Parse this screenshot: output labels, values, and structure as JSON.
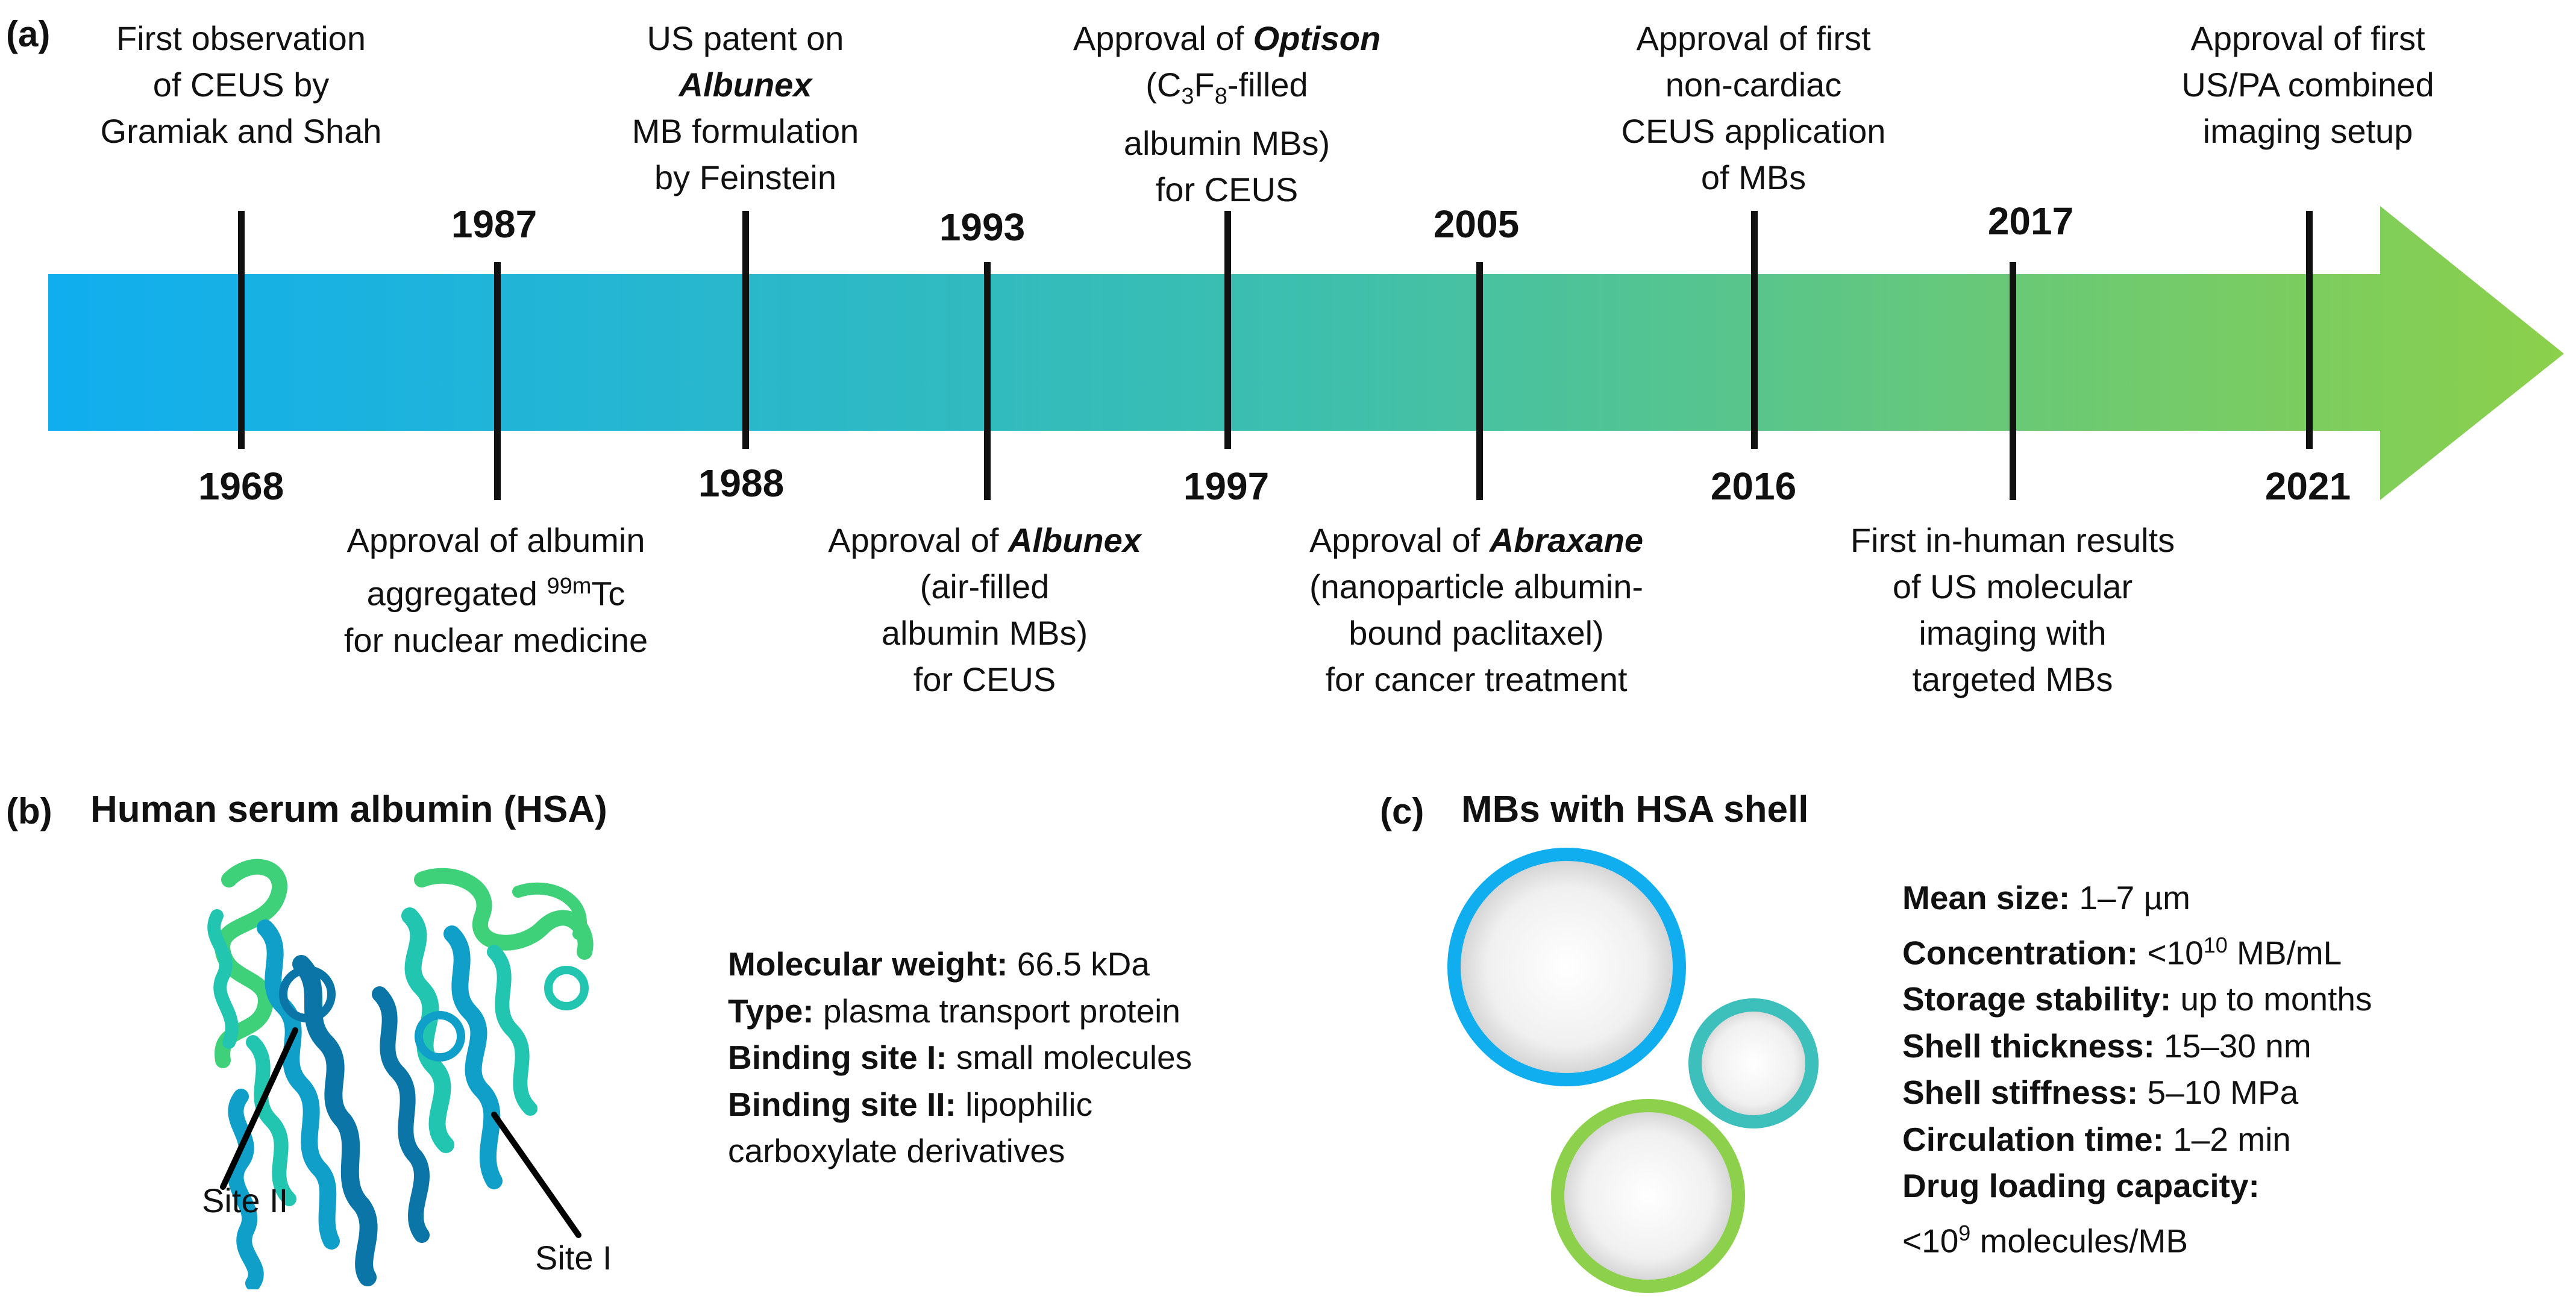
{
  "panel_a": {
    "label": "(a)",
    "events": [
      {
        "year": "1968",
        "above_year": false,
        "lines": [
          "First observation",
          "of CEUS by",
          "Gramiak and Shah"
        ]
      },
      {
        "year": "1987",
        "above_year": true,
        "lines": [
          "Approval of albumin",
          "aggregated 99mTc",
          "for nuclear medicine"
        ]
      },
      {
        "year": "1988",
        "above_year": false,
        "lines": [
          "US patent on",
          "Albunex",
          "MB formulation",
          "by Feinstein"
        ]
      },
      {
        "year": "1993",
        "above_year": true,
        "lines": [
          "Approval of Albunex",
          "(air-filled",
          "albumin MBs)",
          "for CEUS"
        ]
      },
      {
        "year": "1997",
        "above_year": false,
        "lines": [
          "Approval of Optison",
          "(C3F8-filled",
          "albumin MBs)",
          "for CEUS"
        ]
      },
      {
        "year": "2005",
        "above_year": true,
        "lines": [
          "Approval of Abraxane",
          "(nanoparticle albumin-",
          "bound paclitaxel)",
          "for cancer treatment"
        ]
      },
      {
        "year": "2016",
        "above_year": false,
        "lines": [
          "Approval of first",
          "non-cardiac",
          "CEUS application",
          "of MBs"
        ]
      },
      {
        "year": "2017",
        "above_year": true,
        "lines": [
          "First in-human results",
          "of US molecular",
          "imaging with",
          "targeted MBs"
        ]
      },
      {
        "year": "2021",
        "above_year": false,
        "lines": [
          "Approval of first",
          "US/PA combined",
          "imaging setup"
        ]
      }
    ],
    "arrow_gradient": [
      "#10aeef",
      "#3dbfae",
      "#8cd04b"
    ]
  },
  "panel_b": {
    "label": "(b)",
    "title": "Human serum albumin (HSA)",
    "site_labels": {
      "site2": "Site II",
      "site1": "Site I"
    },
    "properties": [
      {
        "key": "Molecular weight:",
        "value": " 66.5 kDa"
      },
      {
        "key": "Type:",
        "value": " plasma transport protein"
      },
      {
        "key": "Binding site I:",
        "value": " small molecules"
      },
      {
        "key": "Binding site II:",
        "value": " lipophilic"
      },
      {
        "key": "",
        "value": "carboxylate derivatives"
      }
    ],
    "protein_colors": [
      "#0b75a8",
      "#0f9fc8",
      "#22c6b0",
      "#3fd07a"
    ]
  },
  "panel_c": {
    "label": "(c)",
    "title": "MBs with HSA shell",
    "bubble_colors": [
      "#10aeef",
      "#3dbfbc",
      "#8cd04b"
    ],
    "properties": [
      {
        "key": "Mean size:",
        "value": " 1–7 µm"
      },
      {
        "key": "Concentration:",
        "value": " <10",
        "sup": "10",
        "tail": " MB/mL"
      },
      {
        "key": "Storage stability:",
        "value": " up to months"
      },
      {
        "key": "Shell thickness:",
        "value": " 15–30 nm"
      },
      {
        "key": "Shell stiffness:",
        "value": " 5–10 MPa"
      },
      {
        "key": "Circulation time:",
        "value": " 1–2 min"
      },
      {
        "key": "Drug loading capacity:",
        "value": ""
      },
      {
        "key": "",
        "value": "<10",
        "sup": "9",
        "tail": " molecules/MB"
      }
    ]
  }
}
